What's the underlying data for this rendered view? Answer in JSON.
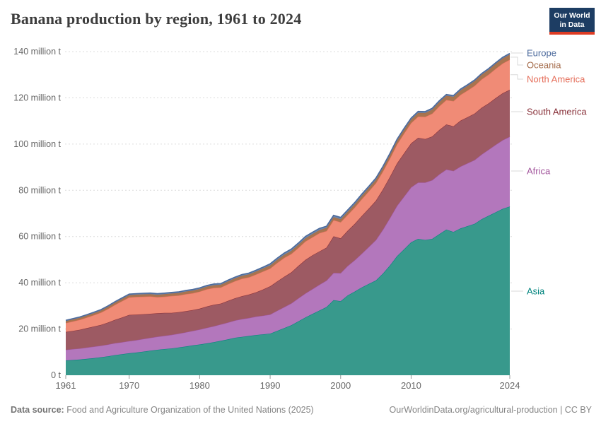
{
  "header": {
    "title": "Banana production by region, 1961 to 2024",
    "logo": {
      "line1": "Our World",
      "line2": "in Data"
    }
  },
  "chart_data": {
    "type": "area",
    "stacked": true,
    "title": "Banana production by region, 1961 to 2024",
    "unit": "million t",
    "ylim": [
      0,
      140
    ],
    "grid": true,
    "legend_position": "right",
    "x": [
      1961,
      1962,
      1963,
      1964,
      1965,
      1966,
      1967,
      1968,
      1969,
      1970,
      1971,
      1972,
      1973,
      1974,
      1975,
      1976,
      1977,
      1978,
      1979,
      1980,
      1981,
      1982,
      1983,
      1984,
      1985,
      1986,
      1987,
      1988,
      1989,
      1990,
      1991,
      1992,
      1993,
      1994,
      1995,
      1996,
      1997,
      1998,
      1999,
      2000,
      2001,
      2002,
      2003,
      2004,
      2005,
      2006,
      2007,
      2008,
      2009,
      2010,
      2011,
      2012,
      2013,
      2014,
      2015,
      2016,
      2017,
      2018,
      2019,
      2020,
      2021,
      2022,
      2023,
      2024
    ],
    "xticks": [
      1961,
      1970,
      1980,
      1990,
      2000,
      2010,
      2024
    ],
    "yticks": [
      {
        "value": 0,
        "label": "0 t"
      },
      {
        "value": 20,
        "label": "20 million t"
      },
      {
        "value": 40,
        "label": "40 million t"
      },
      {
        "value": 60,
        "label": "60 million t"
      },
      {
        "value": 80,
        "label": "80 million t"
      },
      {
        "value": 100,
        "label": "100 million t"
      },
      {
        "value": 120,
        "label": "120 million t"
      },
      {
        "value": 140,
        "label": "140 million t"
      }
    ],
    "series": [
      {
        "name": "Asia",
        "fill": "#38998c",
        "color": "#00847e",
        "values": [
          6.4,
          6.6,
          6.8,
          7.1,
          7.4,
          7.8,
          8.2,
          8.7,
          9.1,
          9.5,
          9.8,
          10.2,
          10.6,
          11.0,
          11.3,
          11.6,
          12.0,
          12.4,
          12.9,
          13.3,
          13.8,
          14.3,
          14.9,
          15.5,
          16.2,
          16.6,
          17.0,
          17.4,
          17.7,
          18.0,
          19.2,
          20.4,
          21.6,
          23.3,
          25.0,
          26.5,
          28.0,
          29.5,
          32.5,
          32.0,
          34.5,
          36.2,
          38.0,
          39.5,
          41.0,
          44.0,
          47.5,
          51.5,
          54.5,
          57.5,
          59.0,
          58.5,
          59.0,
          61.0,
          63.0,
          62.0,
          63.5,
          64.5,
          65.5,
          67.5,
          69.0,
          70.5,
          72.0,
          73.0
        ]
      },
      {
        "name": "Africa",
        "fill": "#b377bc",
        "color": "#a2559c",
        "values": [
          4.6,
          4.7,
          4.8,
          4.9,
          5.0,
          5.0,
          5.1,
          5.2,
          5.2,
          5.3,
          5.4,
          5.5,
          5.6,
          5.7,
          5.8,
          5.9,
          6.0,
          6.2,
          6.3,
          6.5,
          6.7,
          6.9,
          7.1,
          7.3,
          7.5,
          7.7,
          7.8,
          8.0,
          8.1,
          8.3,
          8.7,
          9.1,
          9.5,
          10.0,
          10.4,
          10.8,
          11.2,
          11.5,
          11.8,
          12.2,
          12.8,
          13.6,
          14.6,
          16.0,
          17.5,
          19.0,
          20.5,
          21.8,
          22.8,
          23.8,
          24.4,
          24.9,
          25.4,
          25.9,
          26.0,
          26.4,
          26.8,
          27.2,
          27.6,
          28.0,
          28.6,
          29.2,
          29.7,
          30.2
        ]
      },
      {
        "name": "South America",
        "fill": "#9d5a63",
        "color": "#883039",
        "values": [
          7.7,
          7.9,
          8.1,
          8.4,
          8.7,
          9.0,
          9.5,
          10.1,
          10.7,
          11.3,
          11.0,
          10.7,
          10.4,
          10.1,
          9.9,
          9.5,
          9.3,
          9.1,
          9.0,
          9.0,
          9.2,
          9.3,
          9.0,
          9.4,
          9.6,
          9.9,
          10.1,
          10.5,
          11.3,
          12.2,
          12.7,
          13.1,
          13.4,
          14.0,
          14.5,
          14.6,
          14.4,
          14.2,
          15.8,
          15.0,
          15.2,
          15.7,
          16.3,
          16.6,
          17.0,
          17.4,
          17.8,
          18.3,
          18.7,
          19.0,
          19.3,
          18.8,
          18.9,
          19.2,
          19.5,
          19.3,
          19.8,
          19.9,
          20.1,
          20.2,
          20.0,
          20.2,
          20.3,
          20.3
        ]
      },
      {
        "name": "North America",
        "fill": "#f08b76",
        "color": "#e56e5a",
        "values": [
          3.9,
          4.1,
          4.3,
          4.6,
          4.9,
          5.3,
          5.9,
          6.5,
          7.1,
          7.6,
          7.7,
          7.6,
          7.5,
          7.0,
          7.0,
          7.3,
          7.2,
          7.4,
          7.3,
          7.4,
          7.5,
          7.3,
          7.0,
          7.2,
          7.4,
          7.6,
          7.5,
          7.7,
          7.8,
          7.7,
          8.0,
          8.2,
          8.0,
          7.8,
          8.0,
          7.8,
          7.9,
          7.2,
          7.0,
          7.0,
          6.9,
          7.1,
          7.3,
          7.5,
          7.6,
          7.8,
          8.0,
          8.3,
          8.6,
          8.8,
          9.2,
          9.6,
          9.9,
          10.3,
          10.6,
          10.9,
          11.2,
          11.6,
          12.0,
          12.3,
          12.5,
          12.7,
          12.9,
          13.0
        ]
      },
      {
        "name": "Oceania",
        "fill": "#a8744f",
        "color": "#a46b4a",
        "values": [
          0.8,
          0.82,
          0.84,
          0.86,
          0.88,
          0.9,
          0.92,
          0.94,
          0.95,
          0.95,
          0.97,
          1.0,
          1.0,
          1.02,
          1.05,
          1.05,
          1.07,
          1.08,
          1.1,
          1.1,
          1.12,
          1.15,
          1.15,
          1.2,
          1.2,
          1.22,
          1.25,
          1.28,
          1.3,
          1.3,
          1.3,
          1.32,
          1.3,
          1.32,
          1.33,
          1.35,
          1.3,
          1.32,
          1.3,
          1.3,
          1.32,
          1.35,
          1.4,
          1.42,
          1.45,
          1.45,
          1.5,
          1.5,
          1.55,
          1.5,
          1.6,
          1.65,
          1.7,
          1.75,
          1.8,
          1.85,
          1.9,
          1.95,
          2.0,
          2.0,
          2.05,
          2.1,
          2.15,
          2.2
        ]
      },
      {
        "name": "Europe",
        "fill": "#6c89ae",
        "color": "#4c6a9c",
        "values": [
          0.35,
          0.36,
          0.37,
          0.38,
          0.39,
          0.4,
          0.41,
          0.42,
          0.43,
          0.44,
          0.44,
          0.45,
          0.45,
          0.46,
          0.46,
          0.47,
          0.47,
          0.48,
          0.48,
          0.48,
          0.49,
          0.5,
          0.5,
          0.51,
          0.52,
          0.53,
          0.54,
          0.55,
          0.56,
          0.7,
          0.72,
          0.74,
          0.76,
          0.78,
          0.8,
          0.78,
          0.76,
          0.75,
          0.76,
          0.75,
          0.74,
          0.76,
          0.75,
          0.73,
          0.72,
          0.7,
          0.68,
          0.66,
          0.64,
          0.62,
          0.6,
          0.6,
          0.58,
          0.58,
          0.56,
          0.55,
          0.54,
          0.52,
          0.52,
          0.5,
          0.5,
          0.5,
          0.5,
          0.5
        ]
      }
    ]
  },
  "footer": {
    "source_label": "Data source:",
    "source_text": " Food and Agriculture Organization of the United Nations (2025)",
    "attribution": "OurWorldinData.org/agricultural-production | CC BY"
  }
}
